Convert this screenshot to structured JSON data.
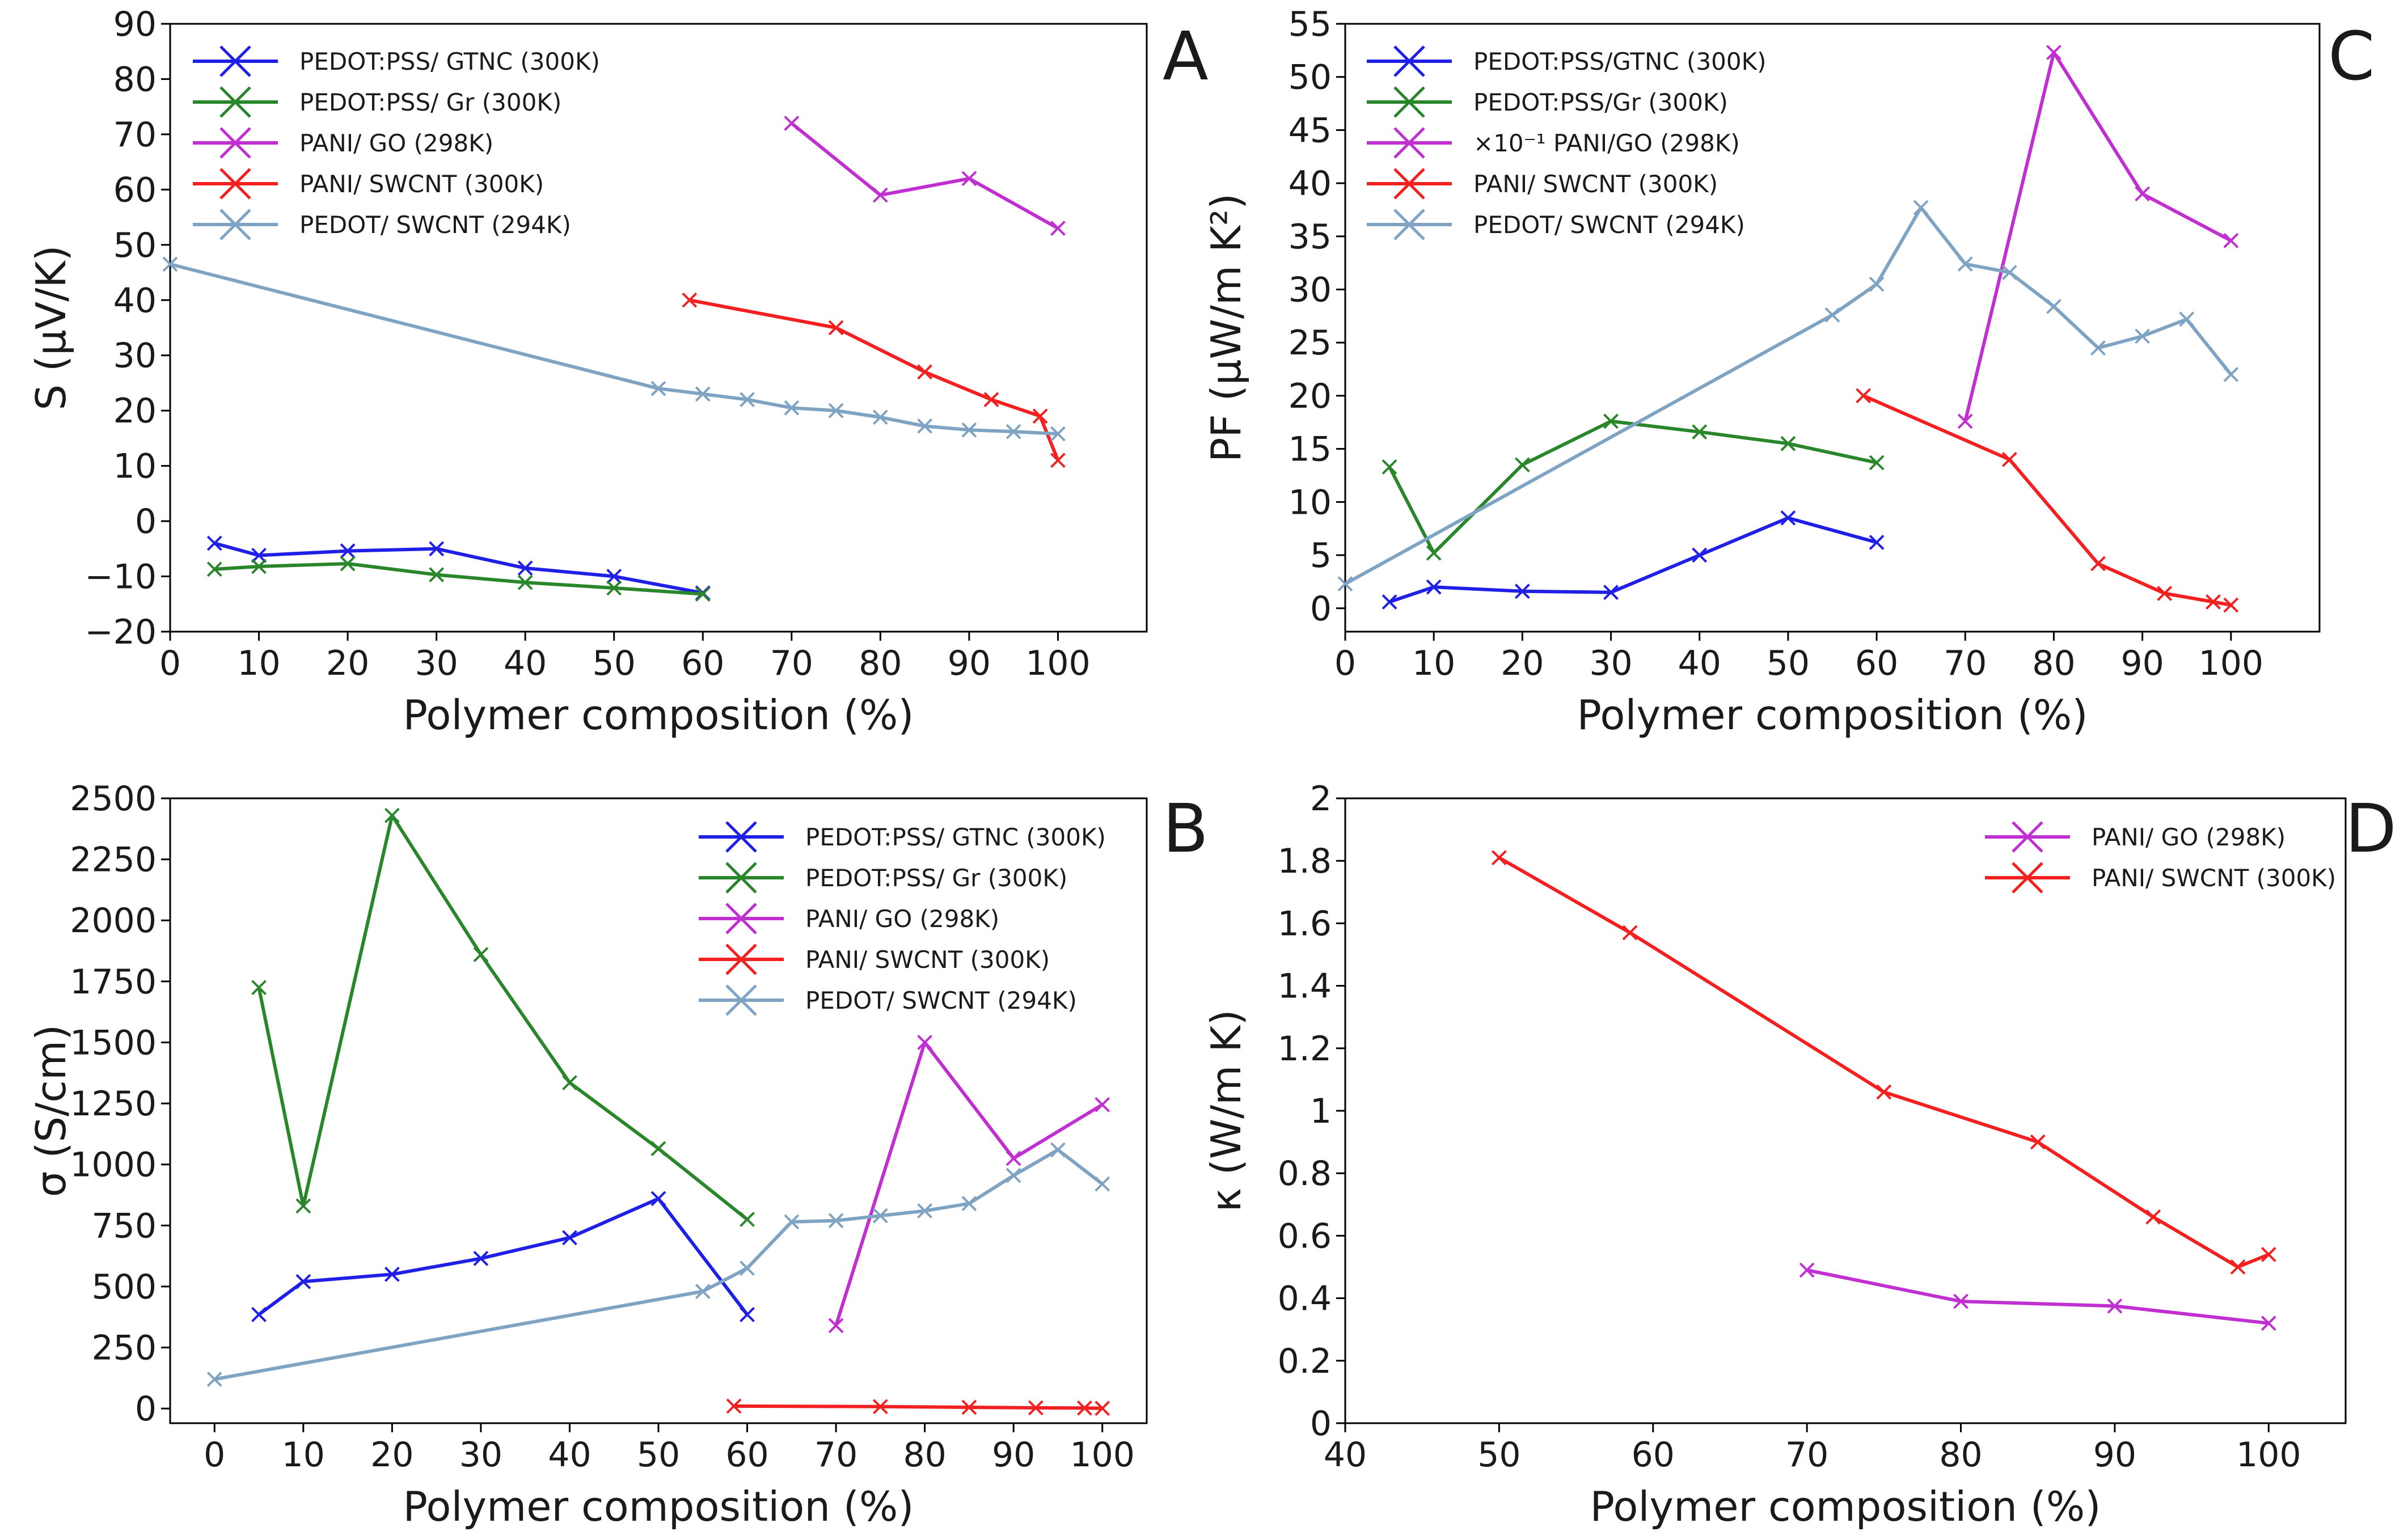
{
  "chart_data": [
    {
      "panel": "A",
      "type": "line",
      "xlabel": "Polymer composition (%)",
      "ylabel": "S (µV/K)",
      "xlim": [
        0,
        110
      ],
      "ylim": [
        -20,
        90
      ],
      "xticks": [
        0,
        10,
        20,
        30,
        40,
        50,
        60,
        70,
        80,
        90,
        100
      ],
      "yticks": [
        -20,
        -10,
        0,
        10,
        20,
        30,
        40,
        50,
        60,
        70,
        80,
        90
      ],
      "legend_position": "top-left",
      "grid": false,
      "series": [
        {
          "name": "PEDOT:PSS/ GTNC (300K)",
          "color": "#1f1fe6",
          "x": [
            5,
            10,
            20,
            30,
            40,
            50,
            60
          ],
          "y": [
            -4,
            -6.2,
            -5.4,
            -5,
            -8.5,
            -10,
            -13
          ]
        },
        {
          "name": "PEDOT:PSS/ Gr (300K)",
          "color": "#2a862a",
          "x": [
            5,
            10,
            20,
            30,
            40,
            50,
            60
          ],
          "y": [
            -8.7,
            -8.2,
            -7.7,
            -9.7,
            -11.1,
            -12.1,
            -13.2
          ]
        },
        {
          "name": "PANI/ GO (298K)",
          "color": "#c02fd0",
          "x": [
            70,
            80,
            90,
            100
          ],
          "y": [
            72,
            59,
            62,
            53
          ]
        },
        {
          "name": "PANI/ SWCNT (300K)",
          "color": "#f22020",
          "x": [
            58.5,
            75,
            85,
            92.5,
            98,
            100
          ],
          "y": [
            40,
            35,
            27,
            22,
            19,
            11
          ]
        },
        {
          "name": "PEDOT/ SWCNT (294K)",
          "color": "#7fa3c3",
          "x": [
            0,
            55,
            60,
            65,
            70,
            75,
            80,
            85,
            90,
            95,
            100
          ],
          "y": [
            46.5,
            24,
            23,
            22,
            20.5,
            20,
            18.8,
            17.2,
            16.5,
            16.2,
            15.8
          ]
        }
      ]
    },
    {
      "panel": "C",
      "type": "line",
      "xlabel": "Polymer composition (%)",
      "ylabel": "PF (µW/m K²)",
      "xlim": [
        0,
        110
      ],
      "ylim": [
        -2.2,
        55
      ],
      "xticks": [
        0,
        10,
        20,
        30,
        40,
        50,
        60,
        70,
        80,
        90,
        100
      ],
      "yticks": [
        0,
        5,
        10,
        15,
        20,
        25,
        30,
        35,
        40,
        45,
        50,
        55
      ],
      "legend_position": "top-left",
      "grid": false,
      "series": [
        {
          "name": "PEDOT:PSS/GTNC (300K)",
          "color": "#1f1fe6",
          "x": [
            5,
            10,
            20,
            30,
            40,
            50,
            60
          ],
          "y": [
            0.6,
            2,
            1.6,
            1.5,
            5,
            8.5,
            6.2
          ]
        },
        {
          "name": "PEDOT:PSS/Gr (300K)",
          "color": "#2a862a",
          "x": [
            5,
            10,
            20,
            30,
            40,
            50,
            60
          ],
          "y": [
            13.3,
            5.2,
            13.5,
            17.6,
            16.6,
            15.5,
            13.7
          ]
        },
        {
          "name": "×10⁻¹  PANI/GO (298K)",
          "color": "#c02fd0",
          "x": [
            70,
            80,
            90,
            100
          ],
          "y": [
            17.6,
            52.3,
            39,
            34.6
          ]
        },
        {
          "name": "PANI/ SWCNT (300K)",
          "color": "#f22020",
          "x": [
            58.5,
            75,
            85,
            92.5,
            98,
            100
          ],
          "y": [
            20,
            14,
            4.2,
            1.4,
            0.6,
            0.3
          ]
        },
        {
          "name": "PEDOT/ SWCNT (294K)",
          "color": "#7fa3c3",
          "x": [
            0,
            55,
            60,
            65,
            70,
            75,
            80,
            85,
            90,
            95,
            100
          ],
          "y": [
            2.3,
            27.6,
            30.5,
            37.7,
            32.4,
            31.6,
            28.4,
            24.5,
            25.6,
            27.2,
            22
          ]
        }
      ]
    },
    {
      "panel": "B",
      "type": "line",
      "xlabel": "Polymer composition (%)",
      "ylabel": "σ (S/cm)",
      "xlim": [
        -5,
        105
      ],
      "ylim": [
        -60,
        2500
      ],
      "xticks": [
        0,
        10,
        20,
        30,
        40,
        50,
        60,
        70,
        80,
        90,
        100
      ],
      "yticks": [
        0,
        250,
        500,
        750,
        1000,
        1250,
        1500,
        1750,
        2000,
        2250,
        2500
      ],
      "legend_position": "top-right",
      "grid": false,
      "series": [
        {
          "name": "PEDOT:PSS/ GTNC (300K)",
          "color": "#1f1fe6",
          "x": [
            5,
            10,
            20,
            30,
            40,
            50,
            60
          ],
          "y": [
            385,
            520,
            550,
            615,
            700,
            860,
            385
          ]
        },
        {
          "name": "PEDOT:PSS/ Gr (300K)",
          "color": "#2a862a",
          "x": [
            5,
            10,
            20,
            30,
            40,
            50,
            60
          ],
          "y": [
            1725,
            830,
            2430,
            1860,
            1335,
            1065,
            775
          ]
        },
        {
          "name": "PANI/ GO (298K)",
          "color": "#c02fd0",
          "x": [
            70,
            80,
            90,
            100
          ],
          "y": [
            340,
            1500,
            1025,
            1245
          ]
        },
        {
          "name": "PANI/ SWCNT (300K)",
          "color": "#f22020",
          "x": [
            58.5,
            75,
            85,
            92.5,
            98,
            100
          ],
          "y": [
            10,
            8,
            5,
            3,
            2,
            1
          ]
        },
        {
          "name": "PEDOT/ SWCNT (294K)",
          "color": "#7fa3c3",
          "x": [
            0,
            55,
            60,
            65,
            70,
            75,
            80,
            85,
            90,
            95,
            100
          ],
          "y": [
            120,
            480,
            575,
            765,
            770,
            790,
            810,
            840,
            955,
            1060,
            920
          ]
        }
      ]
    },
    {
      "panel": "D",
      "type": "line",
      "xlabel": "Polymer composition (%)",
      "ylabel": "κ (W/m K)",
      "xlim": [
        40,
        105
      ],
      "ylim": [
        0,
        2.0
      ],
      "xticks": [
        40,
        50,
        60,
        70,
        80,
        90,
        100
      ],
      "yticks": [
        0.0,
        0.2,
        0.4,
        0.6,
        0.8,
        1.0,
        1.2,
        1.4,
        1.6,
        1.8,
        2.0
      ],
      "legend_position": "top-right",
      "grid": false,
      "series": [
        {
          "name": "PANI/ GO (298K)",
          "color": "#c02fd0",
          "x": [
            70,
            80,
            90,
            100
          ],
          "y": [
            0.49,
            0.39,
            0.375,
            0.32
          ]
        },
        {
          "name": "PANI/ SWCNT (300K)",
          "color": "#f22020",
          "x": [
            50,
            58.5,
            75,
            85,
            92.5,
            98,
            100
          ],
          "y": [
            1.81,
            1.57,
            1.06,
            0.9,
            0.66,
            0.5,
            0.54
          ]
        }
      ]
    }
  ]
}
